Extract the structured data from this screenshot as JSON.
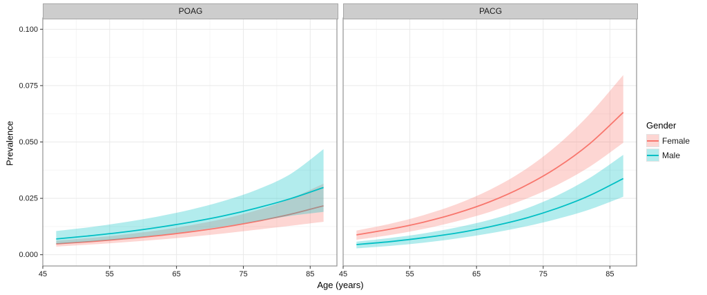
{
  "chart_data": {
    "type": "line",
    "title": "",
    "xlabel": "Age (years)",
    "ylabel": "Prevalence",
    "x": [
      47,
      52,
      57,
      62,
      67,
      72,
      77,
      82,
      87
    ],
    "xlim": [
      45,
      89
    ],
    "ylim": [
      -0.005,
      0.105
    ],
    "x_ticks": [
      45,
      55,
      65,
      75,
      85
    ],
    "x_minor_ticks": [
      50,
      60,
      70,
      80
    ],
    "y_ticks": [
      {
        "value": 0.0,
        "label": "0.000"
      },
      {
        "value": 0.025,
        "label": "0.025"
      },
      {
        "value": 0.05,
        "label": "0.050"
      },
      {
        "value": 0.075,
        "label": "0.075"
      },
      {
        "value": 0.1,
        "label": "0.100"
      }
    ],
    "y_minor_ticks": [
      0.0125,
      0.0375,
      0.0625,
      0.0875
    ],
    "grid": "on",
    "legend": {
      "title": "Gender",
      "position": "right",
      "entries": [
        {
          "label": "Female",
          "line_color": "#F8766D",
          "fill_color": "#F8766D",
          "fill_alpha": 0.3
        },
        {
          "label": "Male",
          "line_color": "#00BFC4",
          "fill_color": "#00BFC4",
          "fill_alpha": 0.3
        }
      ]
    },
    "facets": [
      {
        "label": "POAG",
        "series": [
          {
            "name": "Female",
            "line_color": "#F8766D",
            "fill_color": "#F8766D",
            "mean": [
              0.0048,
              0.0058,
              0.007,
              0.0084,
              0.0101,
              0.0122,
              0.0148,
              0.0179,
              0.0217
            ],
            "lower": [
              0.0036,
              0.0045,
              0.0055,
              0.0066,
              0.0079,
              0.0094,
              0.0111,
              0.0128,
              0.0146
            ],
            "upper": [
              0.0062,
              0.0074,
              0.0089,
              0.0107,
              0.013,
              0.0159,
              0.0197,
              0.0248,
              0.0315
            ]
          },
          {
            "name": "Male",
            "line_color": "#00BFC4",
            "fill_color": "#00BFC4",
            "mean": [
              0.007,
              0.0084,
              0.01,
              0.012,
              0.0144,
              0.0172,
              0.0207,
              0.0248,
              0.0298
            ],
            "lower": [
              0.0047,
              0.0058,
              0.007,
              0.0086,
              0.0104,
              0.0125,
              0.0149,
              0.0172,
              0.019
            ],
            "upper": [
              0.0105,
              0.0122,
              0.0143,
              0.0168,
              0.0199,
              0.0238,
              0.0288,
              0.0357,
              0.0468
            ]
          }
        ]
      },
      {
        "label": "PACG",
        "series": [
          {
            "name": "Female",
            "line_color": "#F8766D",
            "fill_color": "#F8766D",
            "mean": [
              0.0088,
              0.0113,
              0.0144,
              0.0184,
              0.0235,
              0.0301,
              0.0385,
              0.0493,
              0.0631
            ],
            "lower": [
              0.0066,
              0.0087,
              0.0114,
              0.0148,
              0.019,
              0.0243,
              0.0308,
              0.0391,
              0.0496
            ],
            "upper": [
              0.0107,
              0.0137,
              0.0175,
              0.0224,
              0.0288,
              0.0372,
              0.0483,
              0.0625,
              0.0797
            ]
          },
          {
            "name": "Male",
            "line_color": "#00BFC4",
            "fill_color": "#00BFC4",
            "mean": [
              0.0045,
              0.0058,
              0.0075,
              0.0096,
              0.0124,
              0.0159,
              0.0205,
              0.0263,
              0.0338
            ],
            "lower": [
              0.0028,
              0.0039,
              0.0053,
              0.0072,
              0.0095,
              0.0123,
              0.0158,
              0.0201,
              0.0257
            ],
            "upper": [
              0.0058,
              0.0074,
              0.0094,
              0.0121,
              0.0155,
              0.02,
              0.0261,
              0.0341,
              0.0443
            ]
          }
        ]
      }
    ],
    "style": {
      "panel_background": "#FFFFFF",
      "panel_border": "#919191",
      "strip_fill": "#CDCDCD",
      "grid_major": "#E9E9E9",
      "grid_minor": "#F5F5F5",
      "tick_color": "#333333",
      "tick_label_color": "#1a1a1a",
      "fill_alpha": 0.3
    }
  }
}
